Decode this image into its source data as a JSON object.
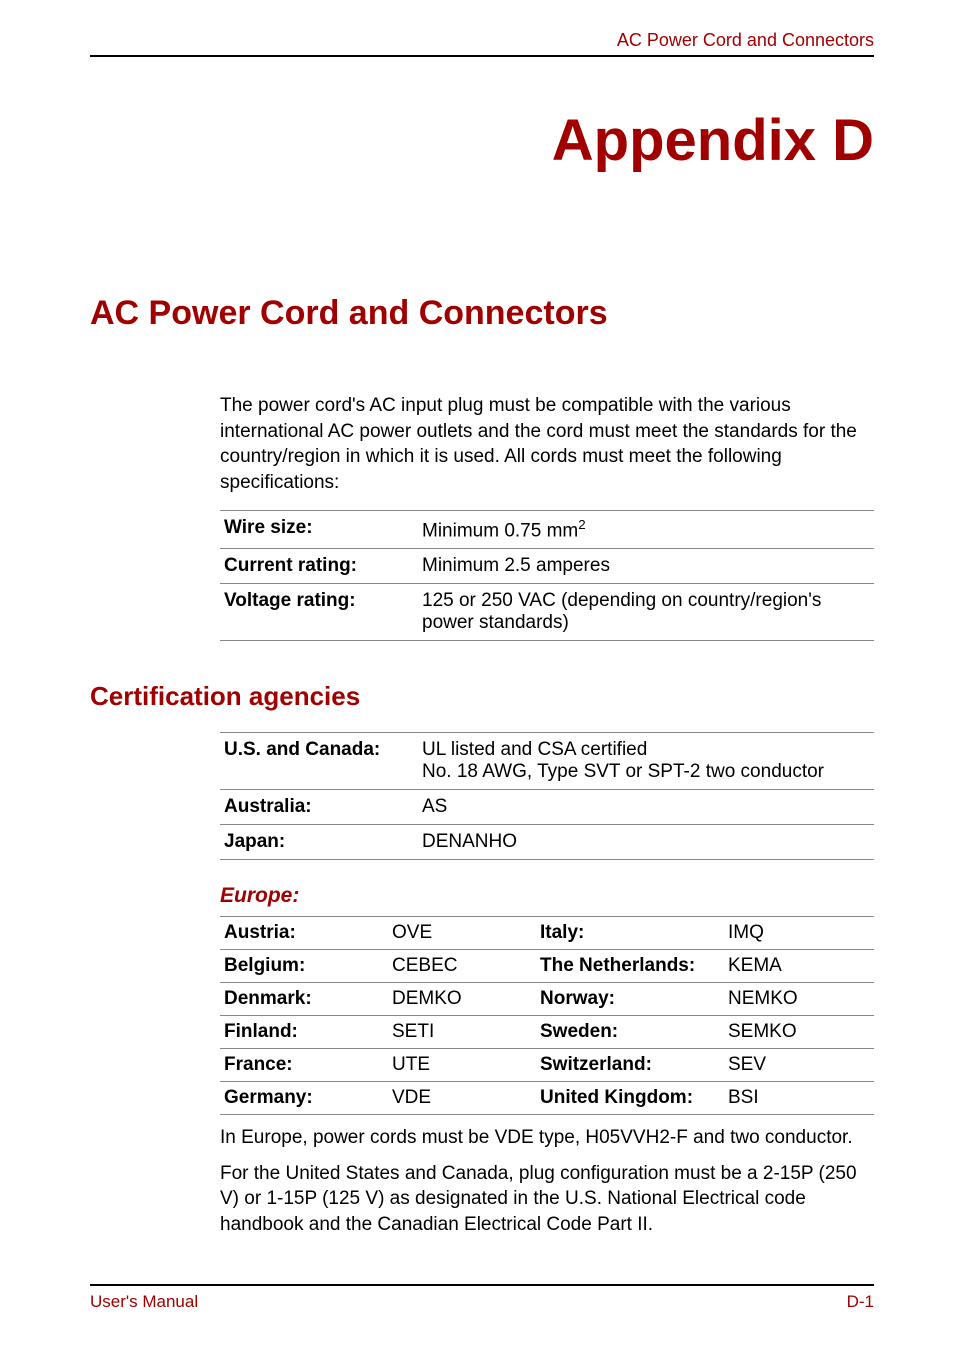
{
  "colors": {
    "accent": "#a00000",
    "text": "#000000",
    "rule": "#888888",
    "background": "#ffffff"
  },
  "header": {
    "running": "AC Power Cord and Connectors"
  },
  "appendix": {
    "label": "Appendix D"
  },
  "title": "AC Power Cord and Connectors",
  "intro": "The power cord's AC input plug must be compatible with the various international AC power outlets and the cord must meet the standards for the country/region in which it is used. All cords must meet the following specifications:",
  "specs": [
    {
      "label": "Wire size:",
      "value_pre": "Minimum 0.75 mm",
      "value_sup": "2",
      "value_post": ""
    },
    {
      "label": "Current rating:",
      "value_pre": "Minimum 2.5 amperes",
      "value_sup": "",
      "value_post": ""
    },
    {
      "label": "Voltage rating:",
      "value_pre": "125 or 250 VAC (depending on country/region's power standards)",
      "value_sup": "",
      "value_post": ""
    }
  ],
  "cert_title": "Certification agencies",
  "cert_rows": [
    {
      "label": "U.S. and Canada:",
      "value": "UL listed and CSA certified\nNo. 18 AWG, Type SVT or SPT-2 two conductor"
    },
    {
      "label": "Australia:",
      "value": "AS"
    },
    {
      "label": "Japan:",
      "value": "DENANHO"
    }
  ],
  "europe_heading": "Europe:",
  "europe_rows": [
    {
      "c1": "Austria:",
      "c2": "OVE",
      "c3": "Italy:",
      "c4": "IMQ"
    },
    {
      "c1": "Belgium:",
      "c2": "CEBEC",
      "c3": "The Netherlands:",
      "c4": "KEMA"
    },
    {
      "c1": "Denmark:",
      "c2": "DEMKO",
      "c3": "Norway:",
      "c4": "NEMKO"
    },
    {
      "c1": "Finland:",
      "c2": "SETI",
      "c3": "Sweden:",
      "c4": "SEMKO"
    },
    {
      "c1": "France:",
      "c2": "UTE",
      "c3": "Switzerland:",
      "c4": "SEV"
    },
    {
      "c1": "Germany:",
      "c2": "VDE",
      "c3": "United Kingdom:",
      "c4": "BSI"
    }
  ],
  "para1": "In Europe, power cords must be VDE type, H05VVH2-F and two conductor.",
  "para2": "For the United States and Canada, plug configuration must be a 2-15P (250 V) or 1-15P (125 V) as designated in the U.S. National Electrical code handbook and the Canadian Electrical Code Part II.",
  "footer": {
    "left": "User's Manual",
    "right": "D-1"
  }
}
